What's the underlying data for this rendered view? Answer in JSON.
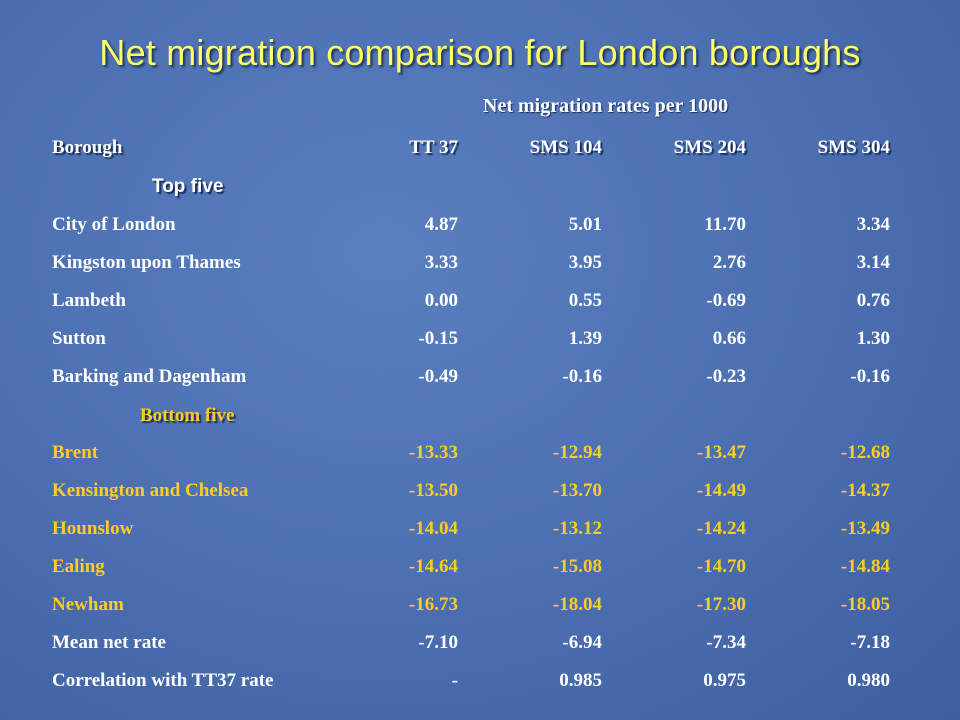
{
  "title": "Net migration comparison for London boroughs",
  "subheading": "Net migration rates per 1000",
  "headers": [
    "Borough",
    "TT 37",
    "SMS 104",
    "SMS 204",
    "SMS 304"
  ],
  "sections": {
    "top": "Top five",
    "bottom": "Bottom five"
  },
  "rows": [
    [
      "City of London",
      "4.87",
      "5.01",
      "11.70",
      "3.34"
    ],
    [
      "Kingston upon Thames",
      "3.33",
      "3.95",
      "2.76",
      "3.14"
    ],
    [
      "Lambeth",
      "0.00",
      "0.55",
      "-0.69",
      "0.76"
    ],
    [
      "Sutton",
      "-0.15",
      "1.39",
      "0.66",
      "1.30"
    ],
    [
      "Barking and Dagenham",
      "-0.49",
      "-0.16",
      "-0.23",
      "-0.16"
    ],
    [
      "Brent",
      "-13.33",
      "-12.94",
      "-13.47",
      "-12.68"
    ],
    [
      "Kensington and Chelsea",
      "-13.50",
      "-13.70",
      "-14.49",
      "-14.37"
    ],
    [
      "Hounslow",
      "-14.04",
      "-13.12",
      "-14.24",
      "-13.49"
    ],
    [
      "Ealing",
      "-14.64",
      "-15.08",
      "-14.70",
      "-14.84"
    ],
    [
      "Newham",
      "-16.73",
      "-18.04",
      "-17.30",
      "-18.05"
    ],
    [
      "Mean net rate",
      "-7.10",
      "-6.94",
      "-7.34",
      "-7.18"
    ],
    [
      "Correlation with TT37 rate",
      "-",
      "0.985",
      "0.975",
      "0.980"
    ]
  ],
  "colors": {
    "title": "#ffff66",
    "bottom_five": "#ffcc22",
    "text": "#ffffff"
  }
}
